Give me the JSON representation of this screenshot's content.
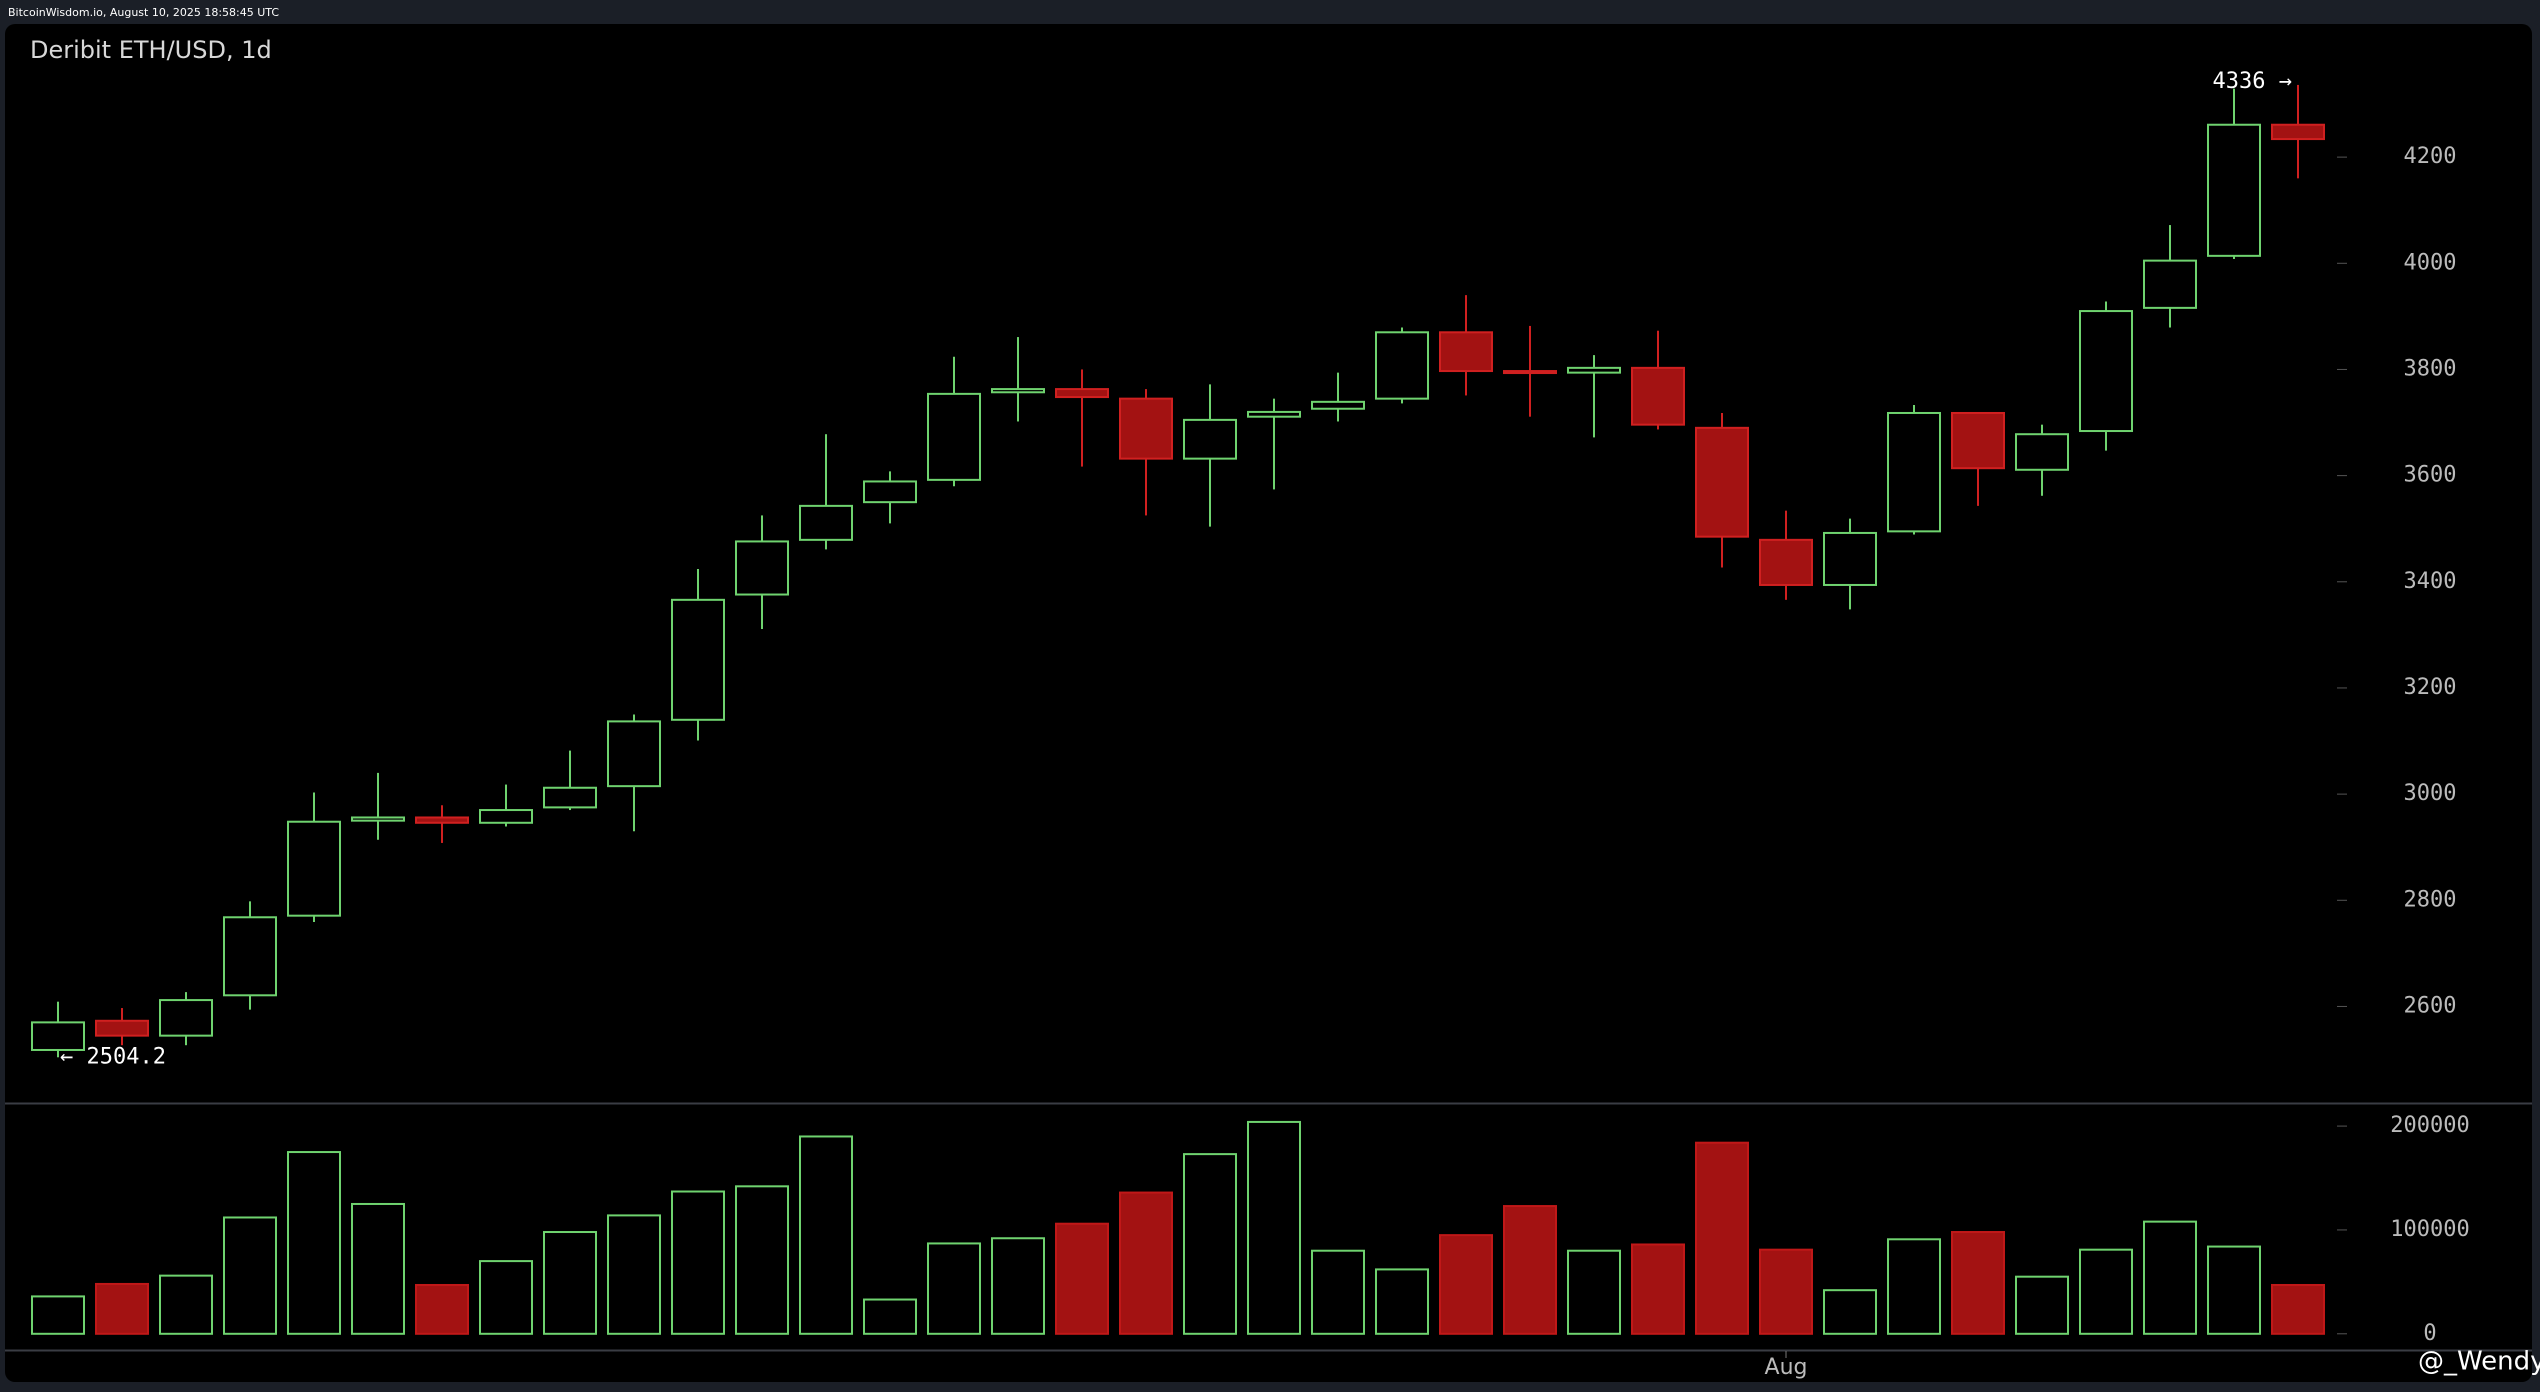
{
  "chart_data": {
    "type": "candlestick",
    "source": "BitcoinWisdom.io, August 10, 2025 18:58:45 UTC",
    "title": "Deribit ETH/USD, 1d",
    "watermark": "@_Wendy",
    "categories": [
      null,
      null,
      null,
      null,
      null,
      null,
      null,
      null,
      null,
      null,
      null,
      null,
      null,
      null,
      null,
      null,
      null,
      null,
      null,
      null,
      null,
      null,
      null,
      null,
      null,
      null,
      null,
      "Aug",
      null,
      null,
      null,
      null,
      null,
      null,
      null,
      null
    ],
    "open": [
      2518,
      2573,
      2545,
      2621,
      2771,
      2950,
      2956,
      2946,
      2975,
      3015,
      3140,
      3376,
      3479,
      3550,
      3592,
      3757,
      3763,
      3745,
      3632,
      3711,
      3726,
      3745,
      3870,
      3797,
      3794,
      3803,
      3690,
      3479,
      3394,
      3495,
      3718,
      3611,
      3684,
      3916,
      4014,
      4261
    ],
    "high": [
      2609,
      2597,
      2627,
      2798,
      3003,
      3040,
      2979,
      3018,
      3082,
      3150,
      3424,
      3525,
      3678,
      3608,
      3824,
      3861,
      3800,
      3763,
      3772,
      3745,
      3794,
      3879,
      3940,
      3882,
      3827,
      3873,
      3718,
      3534,
      3519,
      3733,
      3718,
      3696,
      3928,
      4072,
      4329,
      4336
    ],
    "low": [
      2504.2,
      2527,
      2527,
      2594,
      2759,
      2914,
      2908,
      2939,
      2970,
      2930,
      3101,
      3311,
      3461,
      3510,
      3580,
      3702,
      3617,
      3525,
      3504,
      3574,
      3702,
      3736,
      3751,
      3711,
      3672,
      3687,
      3427,
      3366,
      3348,
      3489,
      3543,
      3562,
      3647,
      3879,
      4008,
      4160
    ],
    "close": [
      2570,
      2545,
      2612,
      2768,
      2948,
      2956,
      2946,
      2970,
      3012,
      3137,
      3366,
      3476,
      3543,
      3589,
      3754,
      3763,
      3748,
      3632,
      3705,
      3720,
      3739,
      3870,
      3797,
      3794,
      3803,
      3696,
      3485,
      3394,
      3492,
      3718,
      3614,
      3678,
      3910,
      4005,
      4261,
      4234
    ],
    "volume": [
      36000,
      48000,
      56000,
      112000,
      175000,
      125000,
      47000,
      70000,
      98000,
      114000,
      137000,
      142000,
      190000,
      33000,
      87000,
      92000,
      106000,
      136000,
      173000,
      204000,
      80000,
      62000,
      95000,
      123000,
      80000,
      86000,
      184000,
      81000,
      42000,
      91000,
      98000,
      55000,
      81000,
      108000,
      84000,
      47000
    ],
    "ylim": [
      2420,
      4447
    ],
    "yticks": [
      2600,
      2800,
      3000,
      3200,
      3400,
      3600,
      3800,
      4000,
      4200
    ],
    "vol_ylim": [
      -15600,
      220300
    ],
    "vol_yticks": [
      0,
      100000,
      200000
    ],
    "annotations": [
      {
        "value": 2504.2,
        "label": "← 2504.2"
      },
      {
        "value": 4336,
        "label": "4336 →"
      }
    ],
    "up_color": "#6fd36f",
    "down_color": "#a31212"
  }
}
